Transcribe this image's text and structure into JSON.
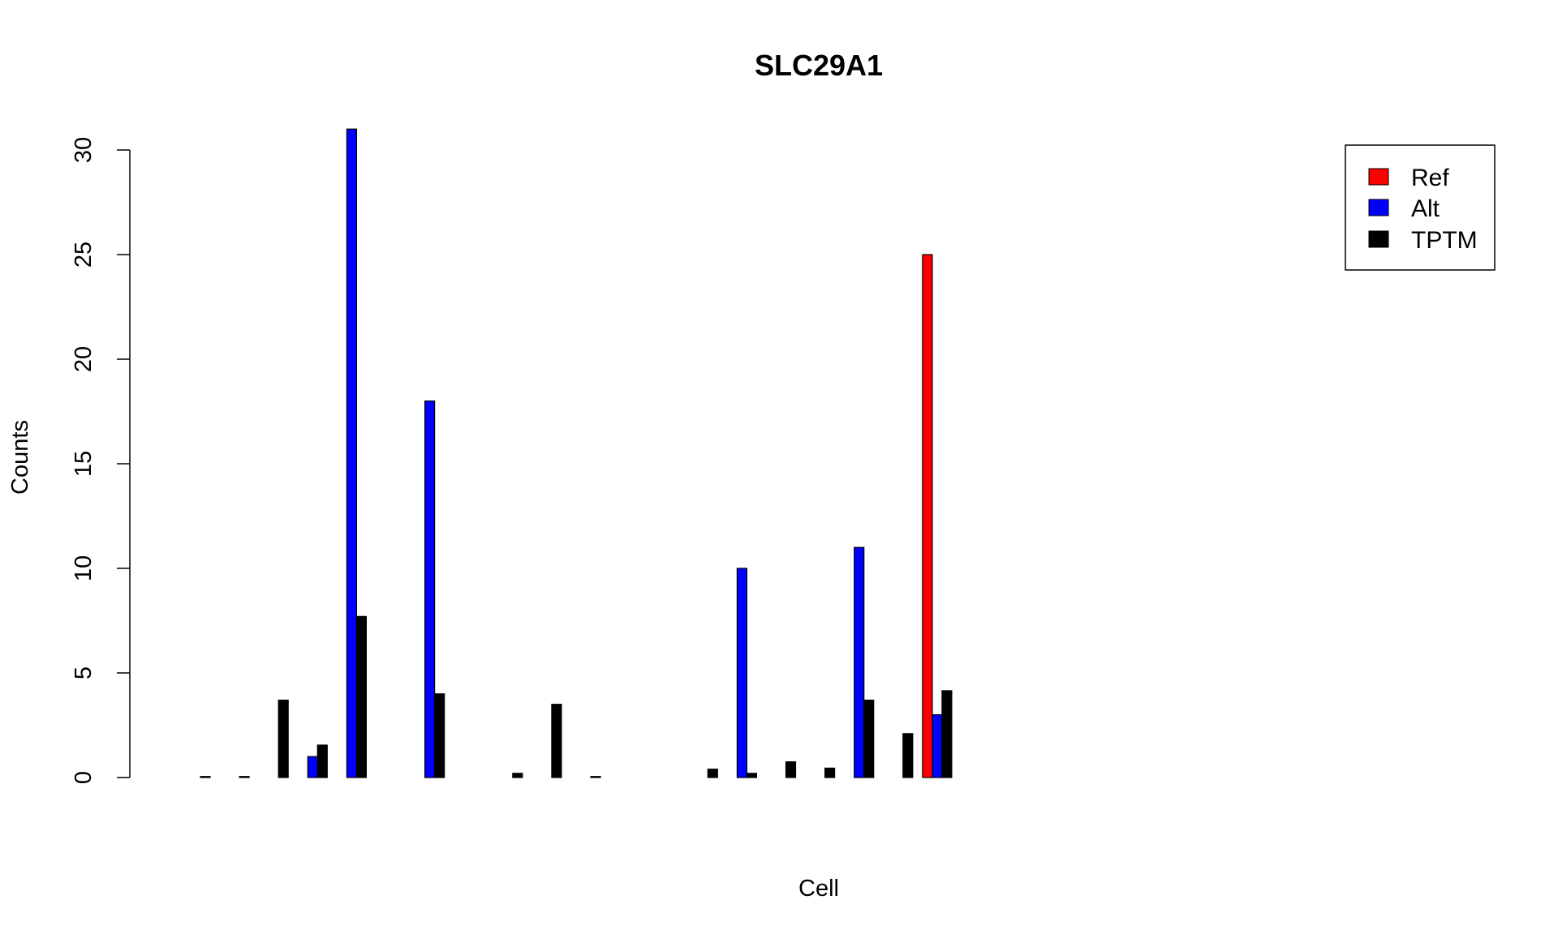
{
  "chart_data": {
    "type": "bar",
    "title": "SLC29A1",
    "xlabel": "Cell",
    "ylabel": "Counts",
    "ylim": [
      0,
      31
    ],
    "yticks": [
      "0",
      "5",
      "10",
      "15",
      "20",
      "25",
      "30"
    ],
    "grid": false,
    "legend_position": "top-right",
    "categories_count": 33,
    "series": [
      {
        "name": "Ref",
        "color": "#ff0000",
        "values": [
          0,
          0,
          0,
          0,
          0,
          0,
          0,
          0,
          0,
          0,
          0,
          0,
          0,
          0,
          0,
          0,
          0,
          0,
          0,
          25,
          0,
          0,
          0,
          0,
          0,
          0,
          0,
          0,
          0,
          0,
          0,
          0,
          0
        ]
      },
      {
        "name": "Alt",
        "color": "#0000ff",
        "values": [
          0,
          0,
          0,
          1,
          31,
          0,
          18,
          0,
          0,
          0,
          0,
          0,
          0,
          0,
          10,
          0,
          0,
          11,
          0,
          3,
          0,
          0,
          0,
          0,
          0,
          0,
          0,
          0,
          0,
          0,
          0,
          0,
          0
        ]
      },
      {
        "name": "TPTM",
        "color": "#000000",
        "values": [
          0.05,
          0.05,
          3.7,
          1.55,
          7.7,
          0,
          4,
          0,
          0.2,
          3.5,
          0.05,
          0,
          0,
          0.4,
          0.2,
          0.75,
          0.45,
          3.7,
          2.1,
          4.15,
          0,
          0,
          0,
          0,
          0,
          0,
          0,
          0,
          0,
          0,
          0,
          0,
          0
        ]
      }
    ]
  }
}
